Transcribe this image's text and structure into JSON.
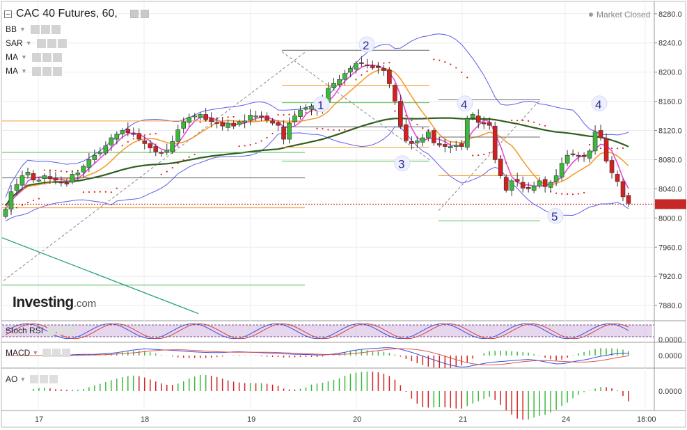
{
  "header": {
    "title": "CAC 40 Futures, 60,",
    "status": "Market Closed"
  },
  "indicators": [
    {
      "label": "BB"
    },
    {
      "label": "SAR"
    },
    {
      "label": "MA"
    },
    {
      "label": "MA"
    }
  ],
  "logo": {
    "main": "Investing",
    "suffix": ".com"
  },
  "subpanes": [
    {
      "label": "Stoch RSI",
      "value_label": "0.0000"
    },
    {
      "label": "MACD",
      "value_label": "0.0000"
    },
    {
      "label": "AO",
      "value_label": "0.0000"
    }
  ],
  "colors": {
    "up": "#3db83d",
    "down": "#d42020",
    "bb": "#5b5bf0",
    "ma_short": "#f59c30",
    "ma_fast": "#e84ad8",
    "ma_long": "#2e5d1d",
    "sar": "#d42020",
    "fib": "#f59c30",
    "channel": "#1a9e7a",
    "wave_label": "#2c2c88"
  },
  "chart_data": {
    "type": "line",
    "instrument": "CAC 40 Futures",
    "timeframe": "60",
    "x_ticks": [
      "17",
      "18",
      "19",
      "20",
      "21",
      "24",
      "18:00"
    ],
    "y_ticks": [
      "8280.0",
      "8240.0",
      "8200.0",
      "8160.0",
      "8120.0",
      "8080.0",
      "8040.0",
      "8000.0",
      "7960.0",
      "7920.0",
      "7880.0"
    ],
    "ylim": [
      7862,
      8296
    ],
    "last_price": 8019,
    "elliott_labels": [
      "1",
      "2",
      "3",
      "4",
      "5",
      "4"
    ],
    "candles_close": [
      8012,
      8036,
      8046,
      8058,
      8063,
      8052,
      8052,
      8058,
      8054,
      8052,
      8048,
      8047,
      8060,
      8062,
      8071,
      8080,
      8086,
      8090,
      8099,
      8110,
      8115,
      8120,
      8117,
      8115,
      8108,
      8102,
      8096,
      8091,
      8089,
      8093,
      8105,
      8121,
      8132,
      8138,
      8140,
      8142,
      8135,
      8132,
      8130,
      8126,
      8130,
      8126,
      8132,
      8133,
      8141,
      8140,
      8138,
      8134,
      8130,
      8127,
      8108,
      8130,
      8140,
      8148,
      8151,
      8153,
      8147,
      8160,
      8178,
      8185,
      8190,
      8198,
      8205,
      8212,
      8212,
      8209,
      8206,
      8206,
      8202,
      8184,
      8160,
      8126,
      8106,
      8102,
      8106,
      8110,
      8118,
      8103,
      8100,
      8098,
      8098,
      8100,
      8098,
      8136,
      8142,
      8131,
      8129,
      8127,
      8080,
      8058,
      8038,
      8051,
      8050,
      8041,
      8040,
      8044,
      8051,
      8043,
      8049,
      8058,
      8075,
      8086,
      8087,
      8085,
      8084,
      8092,
      8118,
      8110,
      8078,
      8062,
      8050,
      8029,
      8020
    ]
  }
}
